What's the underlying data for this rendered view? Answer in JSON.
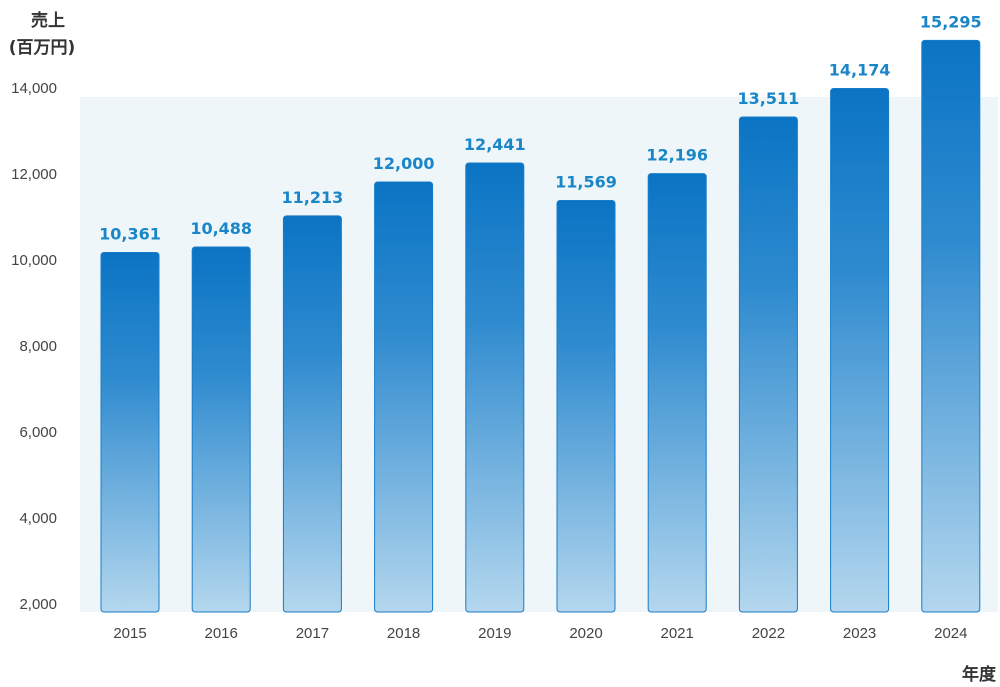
{
  "chart_data": {
    "type": "bar",
    "ylabel_lines": [
      "売上",
      "(百万円)"
    ],
    "xlabel": "年度",
    "categories": [
      "2015",
      "2016",
      "2017",
      "2018",
      "2019",
      "2020",
      "2021",
      "2022",
      "2023",
      "2024"
    ],
    "values": [
      10361,
      10488,
      11213,
      12000,
      12441,
      11569,
      12196,
      13511,
      14174,
      15295
    ],
    "value_labels": [
      "10,361",
      "10,488",
      "11,213",
      "12,000",
      "12,441",
      "11,569",
      "12,196",
      "13,511",
      "14,174",
      "15,295"
    ],
    "yticks": [
      2000,
      4000,
      6000,
      8000,
      10000,
      12000,
      14000
    ],
    "ytick_labels": [
      "2,000",
      "4,000",
      "6,000",
      "8,000",
      "10,000",
      "12,000",
      "14,000"
    ],
    "ylim": [
      2000,
      14000
    ],
    "grid": false,
    "colors": {
      "bar_top": "#0a74c4",
      "bar_bottom": "#b4d7ee",
      "bar_stroke": "#1a7cc8",
      "plot_background": "#eef6fa",
      "data_label": "#1a86c8"
    }
  }
}
